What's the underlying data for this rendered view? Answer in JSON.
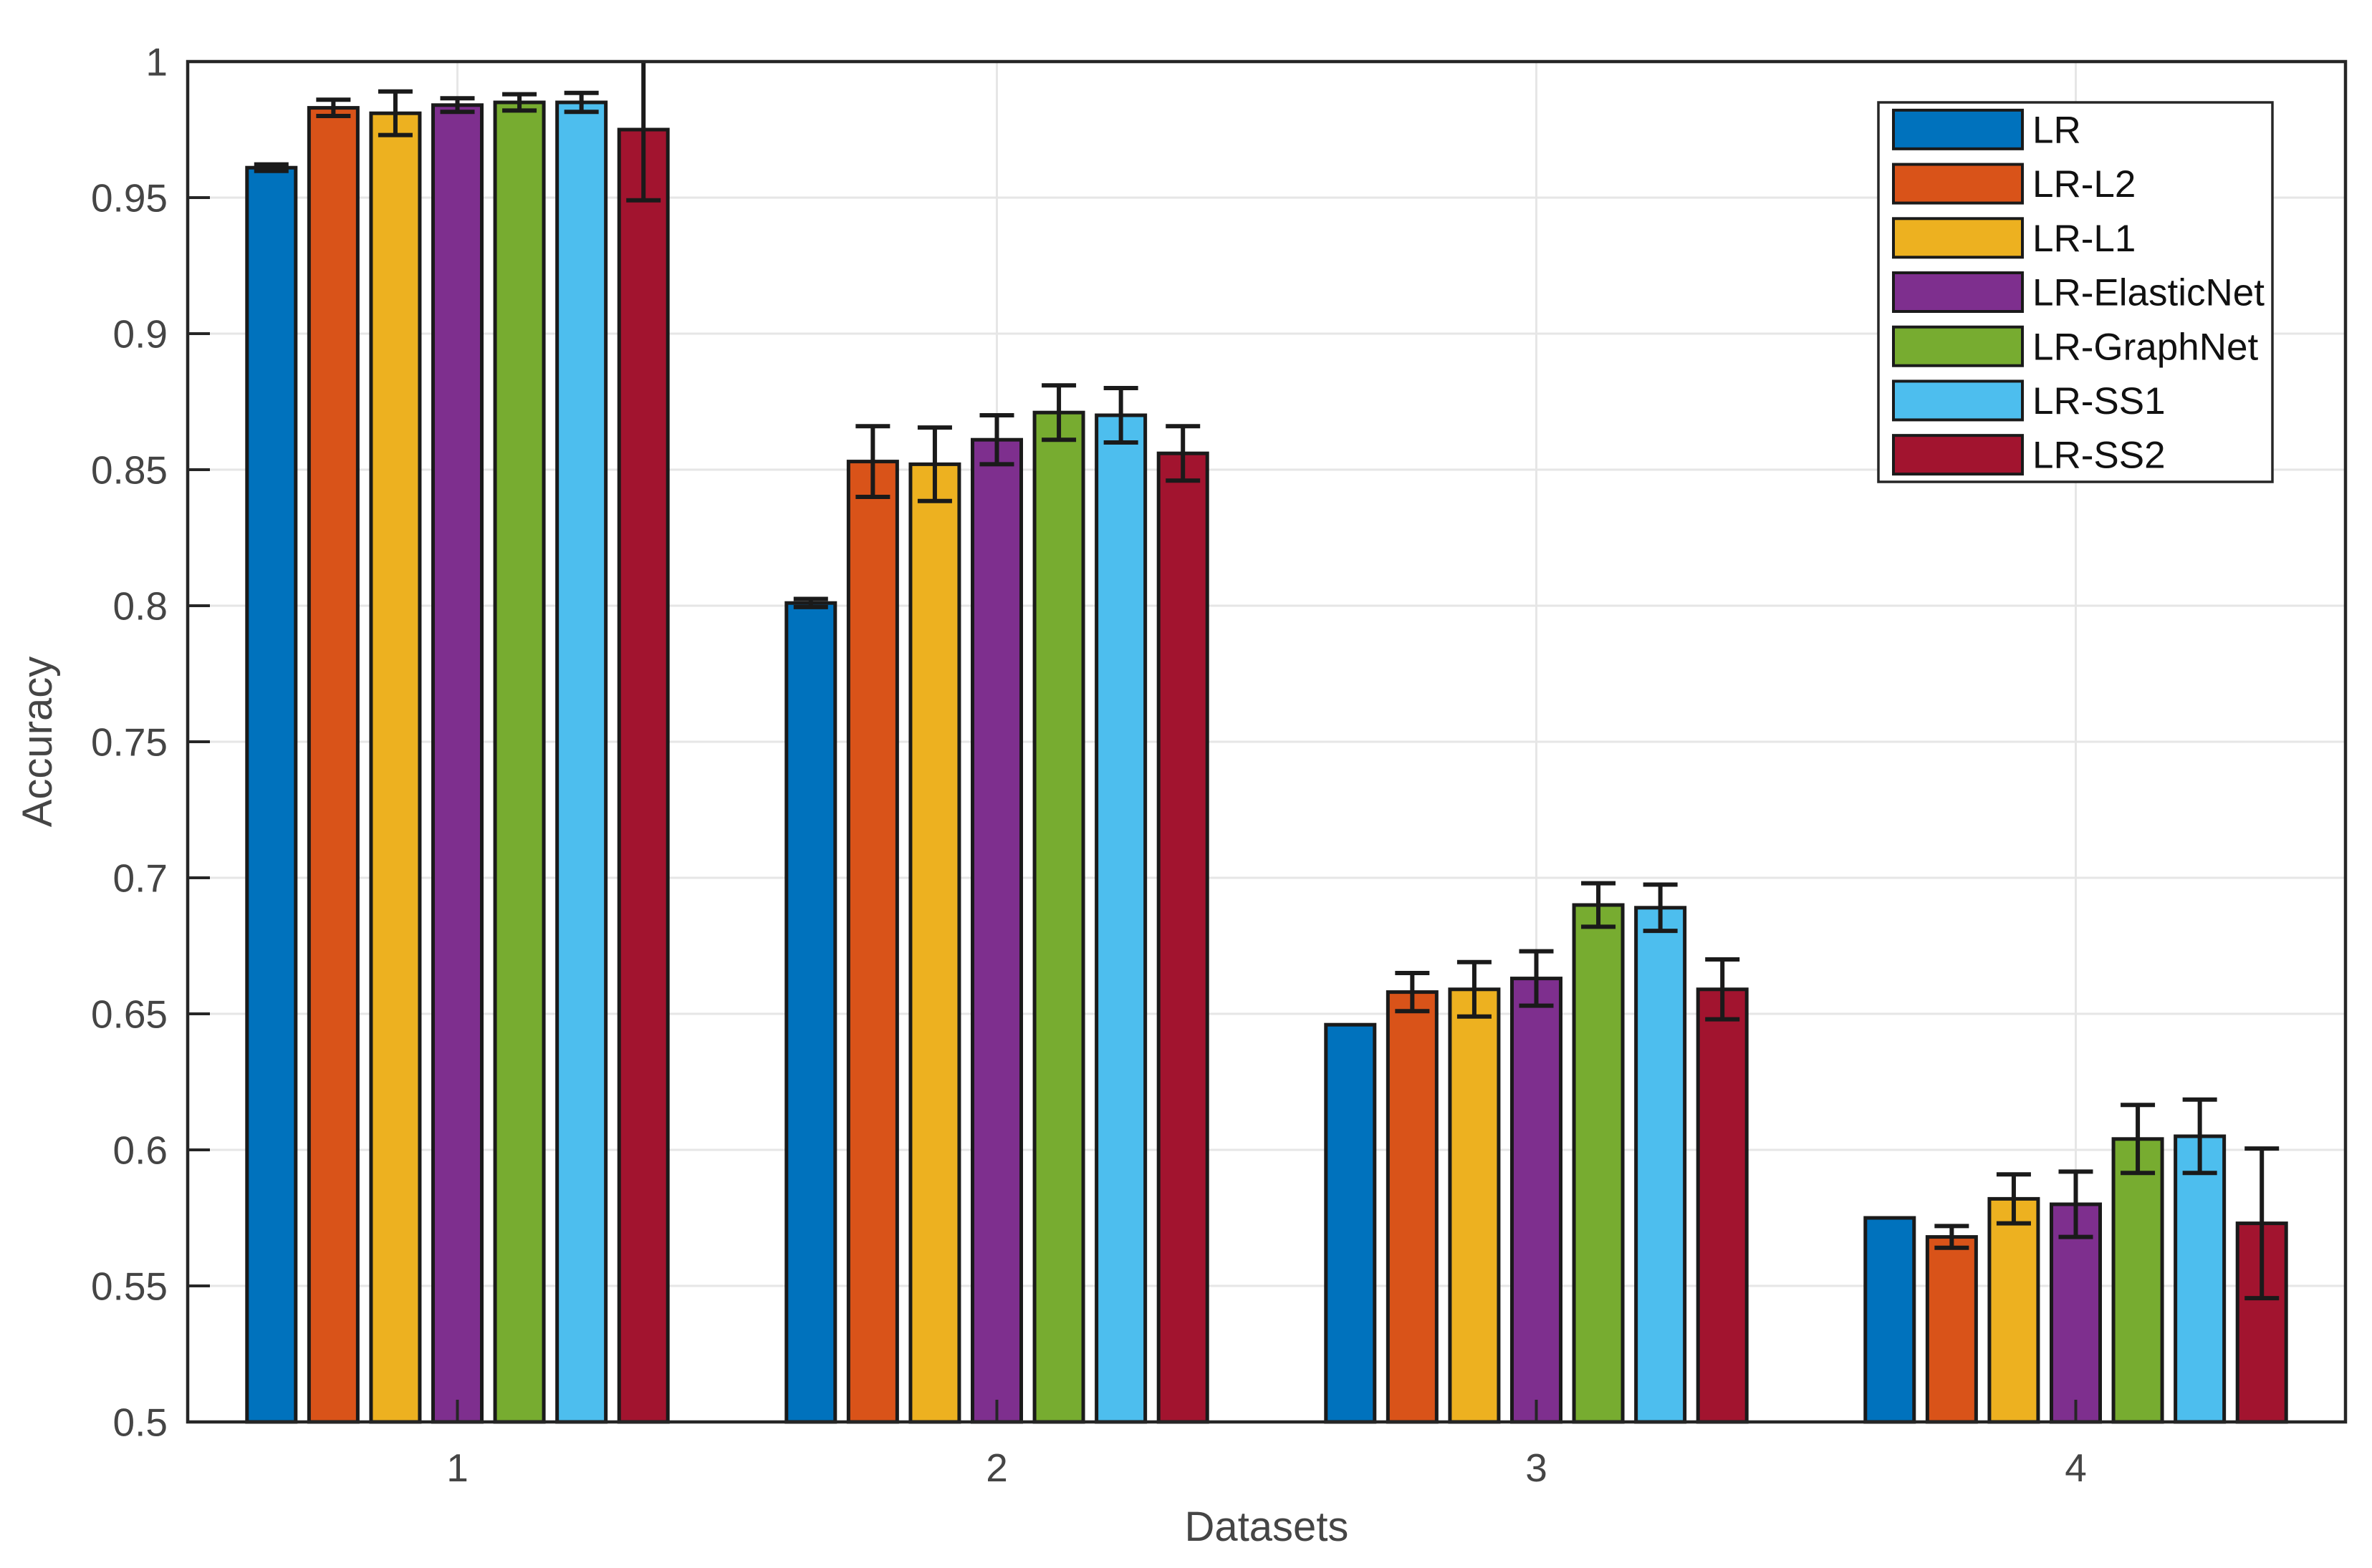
{
  "chart_data": {
    "type": "bar",
    "title": "",
    "xlabel": "Datasets",
    "ylabel": "Accuracy",
    "categories": [
      "1",
      "2",
      "3",
      "4"
    ],
    "ylim": [
      0.5,
      1.0
    ],
    "ytick_step": 0.05,
    "ytick_labels": [
      "0.5",
      "0.55",
      "0.6",
      "0.65",
      "0.7",
      "0.75",
      "0.8",
      "0.85",
      "0.9",
      "0.95",
      "1"
    ],
    "grid": "on",
    "legend_position": "northeast",
    "error_bars": "yes, symmetric, clipped at ylim",
    "series": [
      {
        "name": "LR",
        "color": "#0072BD",
        "values": [
          0.961,
          0.801,
          0.646,
          0.575
        ],
        "errors": [
          0.0012,
          0.0015,
          0,
          0
        ]
      },
      {
        "name": "LR-L2",
        "color": "#D95319",
        "values": [
          0.983,
          0.853,
          0.658,
          0.568
        ],
        "errors": [
          0.003,
          0.013,
          0.007,
          0.004
        ]
      },
      {
        "name": "LR-L1",
        "color": "#EDB120",
        "values": [
          0.981,
          0.852,
          0.659,
          0.582
        ],
        "errors": [
          0.008,
          0.0135,
          0.01,
          0.009
        ]
      },
      {
        "name": "LR-ElasticNet",
        "color": "#7E2F8E",
        "values": [
          0.984,
          0.861,
          0.663,
          0.58
        ],
        "errors": [
          0.0025,
          0.009,
          0.01,
          0.012
        ]
      },
      {
        "name": "LR-GraphNet",
        "color": "#77AC30",
        "values": [
          0.985,
          0.871,
          0.69,
          0.604
        ],
        "errors": [
          0.003,
          0.01,
          0.008,
          0.0125
        ]
      },
      {
        "name": "LR-SS1",
        "color": "#4DBEEE",
        "values": [
          0.985,
          0.87,
          0.689,
          0.605
        ],
        "errors": [
          0.0035,
          0.01,
          0.0085,
          0.0135
        ]
      },
      {
        "name": "LR-SS2",
        "color": "#A2142F",
        "values": [
          0.975,
          0.856,
          0.659,
          0.573
        ],
        "errors": [
          0.026,
          0.01,
          0.011,
          0.0275
        ]
      }
    ],
    "style_colors": {
      "axis": "#262626",
      "tick_text": "#454545",
      "label_text": "#454545",
      "legend_text": "#111111",
      "grid": "#e6e6e6",
      "bar_edge": "#1a1a1a",
      "error_bar": "#1a1a1a",
      "background": "#ffffff"
    }
  }
}
